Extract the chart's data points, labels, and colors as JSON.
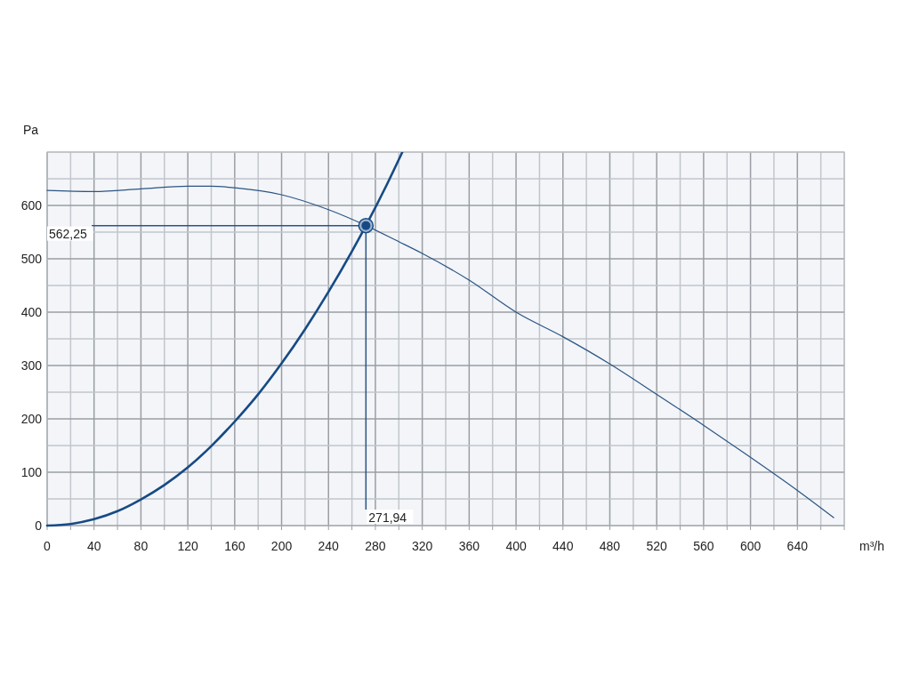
{
  "chart_data": {
    "type": "line",
    "xlabel": "m³/h",
    "ylabel": "Pa",
    "xlim": [
      0,
      680
    ],
    "ylim": [
      0,
      700
    ],
    "xticks": [
      0,
      {
        "value": 20,
        "label": null
      },
      40,
      {
        "value": 60,
        "label": null
      },
      80,
      {
        "value": 100,
        "label": null
      },
      120,
      {
        "value": 140,
        "label": null
      },
      160,
      {
        "value": 180,
        "label": null
      },
      200,
      {
        "value": 220,
        "label": null
      },
      240,
      {
        "value": 260,
        "label": null
      },
      280,
      {
        "value": 300,
        "label": null
      },
      320,
      {
        "value": 340,
        "label": null
      },
      360,
      {
        "value": 380,
        "label": null
      },
      400,
      {
        "value": 420,
        "label": null
      },
      440,
      {
        "value": 460,
        "label": null
      },
      480,
      {
        "value": 500,
        "label": null
      },
      520,
      {
        "value": 540,
        "label": null
      },
      560,
      {
        "value": 580,
        "label": null
      },
      600,
      {
        "value": 620,
        "label": null
      },
      640,
      {
        "value": 660,
        "label": null
      },
      {
        "value": 680,
        "label": null
      }
    ],
    "yticks": [
      0,
      {
        "value": 50,
        "label": null
      },
      100,
      {
        "value": 150,
        "label": null
      },
      200,
      {
        "value": 250,
        "label": null
      },
      300,
      {
        "value": 350,
        "label": null
      },
      400,
      {
        "value": 450,
        "label": null
      },
      500,
      {
        "value": 550,
        "label": null
      },
      600,
      {
        "value": 650,
        "label": null
      },
      {
        "value": 700,
        "label": null
      }
    ],
    "grid": true,
    "marker": "none",
    "series": [
      {
        "color": "#2b5585",
        "x": [
          0,
          40,
          80,
          120,
          140,
          160,
          200,
          240,
          271.94,
          300,
          320,
          360,
          400,
          440,
          480,
          520,
          560,
          600,
          640,
          671
        ],
        "values": [
          628,
          626,
          631,
          636,
          636,
          633,
          620,
          592,
          562.25,
          532,
          510,
          460,
          400,
          354,
          303,
          246,
          188,
          128,
          66,
          15
        ]
      },
      {
        "color": "#174a85",
        "x": [
          0,
          20,
          40,
          60,
          80,
          100,
          120,
          140,
          160,
          180,
          200,
          220,
          240,
          260,
          271.94,
          290,
          303
        ],
        "values": [
          0,
          3,
          12,
          27,
          49,
          76,
          109,
          149,
          195,
          246,
          304,
          368,
          438,
          514,
          562.25,
          640,
          700
        ]
      },
      {
        "type": "scatter",
        "marker": "circle",
        "color": "#174a85",
        "x": [
          271.94
        ],
        "values": [
          562.25
        ]
      }
    ],
    "annotations": [
      {
        "text": "562,25",
        "x": 271.94,
        "y": 562.25
      },
      {
        "text": "271,94",
        "x": 271.94,
        "y": 562.25
      }
    ]
  }
}
